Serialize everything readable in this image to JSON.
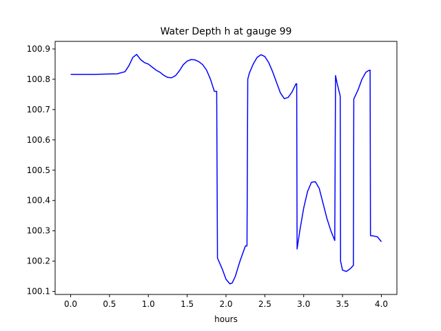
{
  "chart_data": {
    "type": "line",
    "title": "Water Depth h at gauge 99",
    "xlabel": "hours",
    "ylabel": "",
    "xlim": [
      -0.2,
      4.2
    ],
    "ylim": [
      100.09,
      100.925
    ],
    "x_ticks": [
      0.0,
      0.5,
      1.0,
      1.5,
      2.0,
      2.5,
      3.0,
      3.5,
      4.0
    ],
    "x_tick_labels": [
      "0.0",
      "0.5",
      "1.0",
      "1.5",
      "2.0",
      "2.5",
      "3.0",
      "3.5",
      "4.0"
    ],
    "y_ticks": [
      100.1,
      100.2,
      100.3,
      100.4,
      100.5,
      100.6,
      100.7,
      100.8,
      100.9
    ],
    "y_tick_labels": [
      "100.1",
      "100.2",
      "100.3",
      "100.4",
      "100.5",
      "100.6",
      "100.7",
      "100.8",
      "100.9"
    ],
    "grid": false,
    "legend": "none",
    "series": [
      {
        "color": "#0000ff",
        "x": [
          0.0,
          0.3,
          0.6,
          0.7,
          0.75,
          0.8,
          0.85,
          0.9,
          0.95,
          1.0,
          1.05,
          1.1,
          1.15,
          1.2,
          1.25,
          1.3,
          1.35,
          1.4,
          1.45,
          1.5,
          1.55,
          1.6,
          1.65,
          1.7,
          1.75,
          1.8,
          1.85,
          1.88,
          1.89,
          1.95,
          2.0,
          2.05,
          2.08,
          2.12,
          2.18,
          2.25,
          2.27,
          2.28,
          2.3,
          2.35,
          2.4,
          2.45,
          2.5,
          2.55,
          2.6,
          2.65,
          2.7,
          2.75,
          2.8,
          2.85,
          2.9,
          2.91,
          2.915,
          2.95,
          3.0,
          3.05,
          3.1,
          3.15,
          3.2,
          3.25,
          3.3,
          3.35,
          3.4,
          3.41,
          3.43,
          3.47,
          3.475,
          3.5,
          3.55,
          3.6,
          3.64,
          3.645,
          3.7,
          3.75,
          3.8,
          3.83,
          3.855,
          3.86,
          3.9,
          3.95,
          4.0
        ],
        "y": [
          100.816,
          100.816,
          100.818,
          100.825,
          100.845,
          100.872,
          100.882,
          100.865,
          100.855,
          100.85,
          100.84,
          100.83,
          100.823,
          100.813,
          100.806,
          100.805,
          100.812,
          100.828,
          100.848,
          100.86,
          100.865,
          100.864,
          100.858,
          100.848,
          100.83,
          100.8,
          100.76,
          100.76,
          100.21,
          100.175,
          100.14,
          100.125,
          100.128,
          100.15,
          100.2,
          100.25,
          100.25,
          100.8,
          100.82,
          100.85,
          100.872,
          100.881,
          100.875,
          100.855,
          100.825,
          100.79,
          100.755,
          100.736,
          100.74,
          100.758,
          100.785,
          100.785,
          100.24,
          100.3,
          100.375,
          100.43,
          100.46,
          100.462,
          100.44,
          100.39,
          100.34,
          100.3,
          100.268,
          100.812,
          100.787,
          100.745,
          100.2,
          100.17,
          100.166,
          100.175,
          100.186,
          100.735,
          100.765,
          100.8,
          100.823,
          100.828,
          100.83,
          100.284,
          100.283,
          100.28,
          100.264
        ]
      }
    ]
  }
}
